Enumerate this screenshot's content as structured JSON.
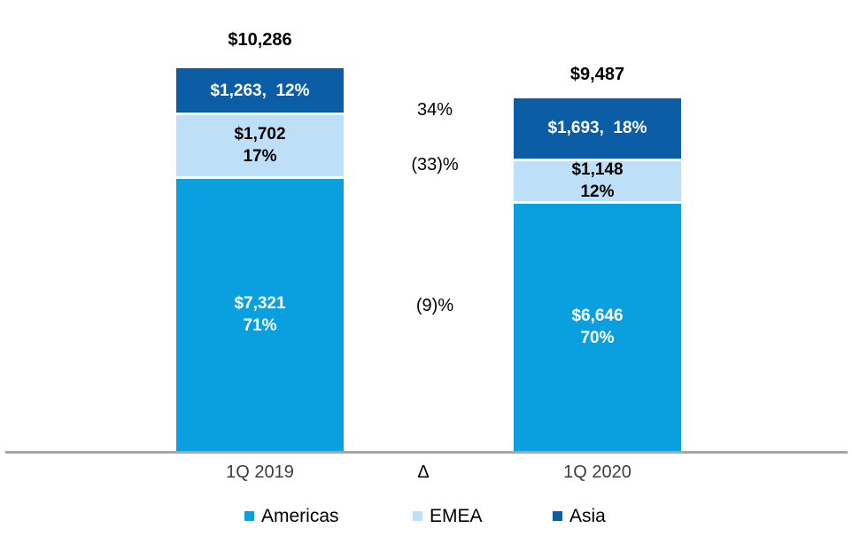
{
  "chart_data": {
    "type": "bar",
    "subtype": "stacked-column-comparison",
    "title": "",
    "categories": [
      "1Q 2019",
      "1Q 2020"
    ],
    "legend_position": "bottom",
    "grid": false,
    "colors": {
      "americas": "#0aa0df",
      "emea": "#bde0f8",
      "asia": "#0b5ea6",
      "axis_line": "#a6a6a6"
    },
    "legend": [
      {
        "name": "Americas",
        "color": "#0aa0df"
      },
      {
        "name": "EMEA",
        "color": "#bde0f8"
      },
      {
        "name": "Asia",
        "color": "#0b5ea6"
      }
    ],
    "bars": [
      {
        "category": "1Q 2019",
        "total": 10286,
        "total_label": "$10,286",
        "segments": {
          "asia": {
            "series": "Asia",
            "value": 1263,
            "pct": "12%",
            "label": "$1,263,  12%"
          },
          "emea": {
            "series": "EMEA",
            "value": 1702,
            "pct": "17%",
            "line1": "$1,702",
            "line2": "17%"
          },
          "americas": {
            "series": "Americas",
            "value": 7321,
            "pct": "71%",
            "line1": "$7,321",
            "line2": "71%"
          }
        }
      },
      {
        "category": "1Q 2020",
        "total": 9487,
        "total_label": "$9,487",
        "segments": {
          "asia": {
            "series": "Asia",
            "value": 1693,
            "pct": "18%",
            "label": "$1,693,  18%"
          },
          "emea": {
            "series": "EMEA",
            "value": 1148,
            "pct": "12%",
            "line1": "$1,148",
            "line2": "12%"
          },
          "americas": {
            "series": "Americas",
            "value": 6646,
            "pct": "70%",
            "line1": "$6,646",
            "line2": "70%"
          }
        }
      }
    ],
    "deltas": {
      "axis_symbol": "Δ",
      "items": [
        {
          "series": "Asia",
          "label": "34%"
        },
        {
          "series": "EMEA",
          "label": "(33)%"
        },
        {
          "series": "Americas",
          "label": "(9)%"
        }
      ]
    }
  }
}
